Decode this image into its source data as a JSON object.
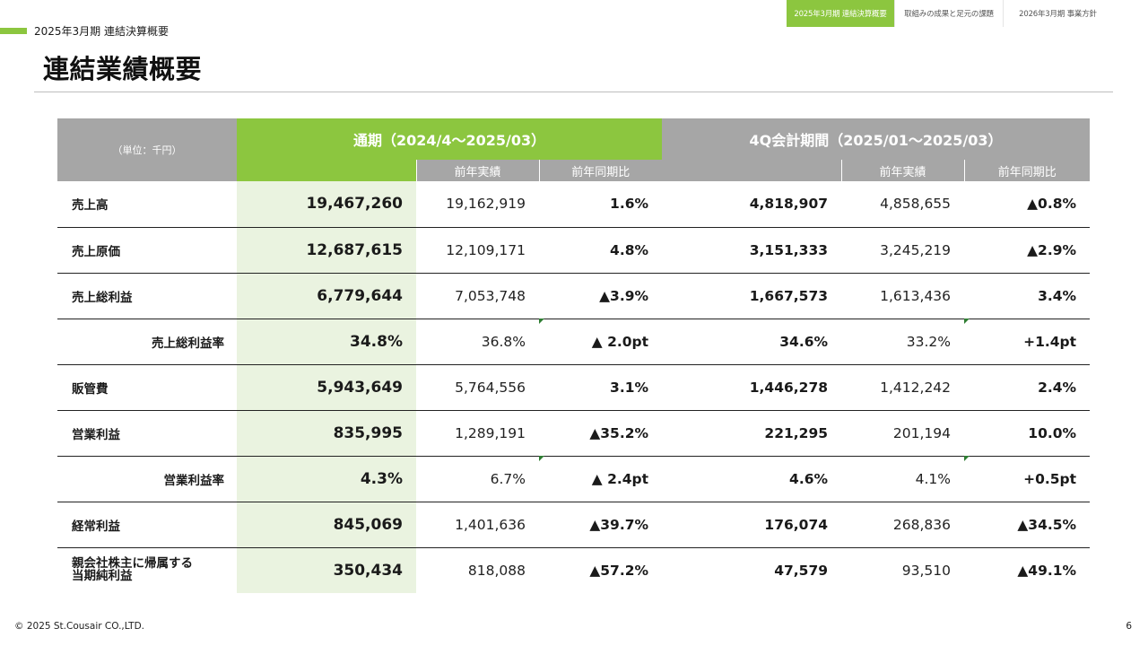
{
  "nav": {
    "tabs": [
      {
        "label": "2025年3月期 連結決算概要",
        "active": true
      },
      {
        "label": "取組みの成果と足元の課題",
        "active": false
      },
      {
        "label": "2026年3月期 事業方針",
        "active": false
      }
    ]
  },
  "section_label": "2025年3月期 連結決算概要",
  "page_title": "連結業績概要",
  "table": {
    "unit": "（単位：千円）",
    "group_full": "通期（2024/4～2025/03）",
    "group_q4": "4Q会計期間（2025/01～2025/03）",
    "sub_prev": "前年実績",
    "sub_yoy": "前年同期比",
    "rows": [
      {
        "label": "売上高",
        "full": "19,467,260",
        "full_prev": "19,162,919",
        "full_yoy": "1.6%",
        "q4": "4,818,907",
        "q4_prev": "4,858,655",
        "q4_yoy": "▲0.8%"
      },
      {
        "label": "売上原価",
        "full": "12,687,615",
        "full_prev": "12,109,171",
        "full_yoy": "4.8%",
        "q4": "3,151,333",
        "q4_prev": "3,245,219",
        "q4_yoy": "▲2.9%"
      },
      {
        "label": "売上総利益",
        "full": "6,779,644",
        "full_prev": "7,053,748",
        "full_yoy": "▲3.9%",
        "q4": "1,667,573",
        "q4_prev": "1,613,436",
        "q4_yoy": "3.4%"
      },
      {
        "label": "売上総利益率",
        "full": "34.8%",
        "full_prev": "36.8%",
        "full_yoy": "▲ 2.0pt",
        "q4": "34.6%",
        "q4_prev": "33.2%",
        "q4_yoy": "+1.4pt"
      },
      {
        "label": "販管費",
        "full": "5,943,649",
        "full_prev": "5,764,556",
        "full_yoy": "3.1%",
        "q4": "1,446,278",
        "q4_prev": "1,412,242",
        "q4_yoy": "2.4%"
      },
      {
        "label": "営業利益",
        "full": "835,995",
        "full_prev": "1,289,191",
        "full_yoy": "▲35.2%",
        "q4": "221,295",
        "q4_prev": "201,194",
        "q4_yoy": "10.0%"
      },
      {
        "label": "営業利益率",
        "full": "4.3%",
        "full_prev": "6.7%",
        "full_yoy": "▲ 2.4pt",
        "q4": "4.6%",
        "q4_prev": "4.1%",
        "q4_yoy": "+0.5pt"
      },
      {
        "label": "経常利益",
        "full": "845,069",
        "full_prev": "1,401,636",
        "full_yoy": "▲39.7%",
        "q4": "176,074",
        "q4_prev": "268,836",
        "q4_yoy": "▲34.5%"
      },
      {
        "label_line1": "親会社株主に帰属する",
        "label_line2": "当期純利益",
        "full": "350,434",
        "full_prev": "818,088",
        "full_yoy": "▲57.2%",
        "q4": "47,579",
        "q4_prev": "93,510",
        "q4_yoy": "▲49.1%"
      }
    ]
  },
  "colors": {
    "accent": "#8cc63f",
    "header_gray": "#a6a6a6",
    "highlight": "#eaf3e0"
  },
  "footer": "© 2025 St.Cousair CO.,LTD.",
  "page_number": "6"
}
